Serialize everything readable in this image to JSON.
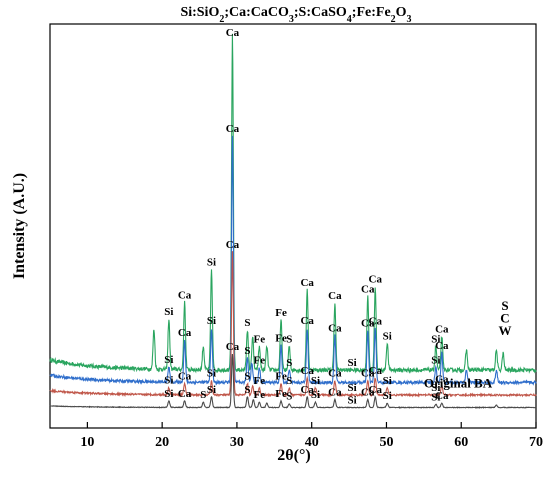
{
  "chart_data": {
    "type": "line",
    "title": "Si:SiO2;Ca:CaCO3;S:CaSO4;Fe:Fe2O3",
    "xlabel": "2θ(°)",
    "ylabel": "Intensity (A.U.)",
    "xlim": [
      5,
      70
    ],
    "xticks": [
      10,
      20,
      30,
      40,
      50,
      60,
      70
    ],
    "y_ticks_shown": false,
    "grid": false,
    "legend": "none",
    "series": [
      {
        "name": "S",
        "color": "#2aa55f",
        "baseline": 0.8,
        "amplitude": 6.1,
        "peaks": [
          [
            18.9,
            0.12
          ],
          [
            20.9,
            0.15
          ],
          [
            23.0,
            0.2
          ],
          [
            25.5,
            0.07
          ],
          [
            26.6,
            0.3
          ],
          [
            29.4,
            1.0
          ],
          [
            31.4,
            0.12
          ],
          [
            32.1,
            0.1
          ],
          [
            33.0,
            0.07
          ],
          [
            34.0,
            0.07
          ],
          [
            35.9,
            0.15
          ],
          [
            37.0,
            0.07
          ],
          [
            39.4,
            0.24
          ],
          [
            43.1,
            0.2
          ],
          [
            47.5,
            0.22
          ],
          [
            48.5,
            0.25
          ],
          [
            50.1,
            0.08
          ],
          [
            56.6,
            0.07
          ],
          [
            57.4,
            0.1
          ],
          [
            60.7,
            0.06
          ],
          [
            64.7,
            0.06
          ],
          [
            65.6,
            0.05
          ]
        ],
        "labels": [
          [
            "Si",
            20.9
          ],
          [
            "Ca",
            23.0
          ],
          [
            "Si",
            26.6
          ],
          [
            "Ca",
            29.4
          ],
          [
            "S",
            31.4
          ],
          [
            "Fe",
            33.0
          ],
          [
            "Fe",
            35.9
          ],
          [
            "S",
            37.0
          ],
          [
            "Ca",
            39.4
          ],
          [
            "Ca",
            43.1
          ],
          [
            "Si",
            45.4
          ],
          [
            "Ca",
            47.5
          ],
          [
            "Ca",
            48.5
          ],
          [
            "Si",
            50.1
          ],
          [
            "Si",
            56.6
          ],
          [
            "Ca",
            57.4
          ]
        ]
      },
      {
        "name": "C",
        "color": "#2f6ecb",
        "baseline": 0.55,
        "amplitude": 4.6,
        "peaks": [
          [
            20.9,
            0.06
          ],
          [
            23.0,
            0.17
          ],
          [
            26.6,
            0.22
          ],
          [
            29.4,
            1.0
          ],
          [
            31.4,
            0.1
          ],
          [
            32.0,
            0.08
          ],
          [
            33.0,
            0.06
          ],
          [
            35.9,
            0.15
          ],
          [
            37.0,
            0.05
          ],
          [
            39.4,
            0.22
          ],
          [
            43.1,
            0.19
          ],
          [
            47.5,
            0.21
          ],
          [
            48.5,
            0.22
          ],
          [
            56.6,
            0.06
          ],
          [
            57.4,
            0.12
          ],
          [
            60.7,
            0.05
          ],
          [
            64.7,
            0.05
          ]
        ],
        "labels": [
          [
            "Si",
            20.9
          ],
          [
            "Ca",
            23.0
          ],
          [
            "Si",
            26.6
          ],
          [
            "Ca",
            29.4
          ],
          [
            "S",
            31.4
          ],
          [
            "Fe",
            33.0
          ],
          [
            "Fe",
            35.9
          ],
          [
            "S",
            37.0
          ],
          [
            "Ca",
            39.4
          ],
          [
            "Ca",
            43.1
          ],
          [
            "Ca",
            47.5
          ],
          [
            "Ca",
            48.5
          ],
          [
            "Si",
            56.6
          ],
          [
            "Ca",
            57.4
          ]
        ]
      },
      {
        "name": "W",
        "color": "#c0574a",
        "baseline": 0.3,
        "amplitude": 4.6,
        "peaks": [
          [
            20.9,
            0.05
          ],
          [
            23.0,
            0.08
          ],
          [
            26.6,
            0.1
          ],
          [
            29.4,
            1.0
          ],
          [
            31.4,
            0.08
          ],
          [
            32.1,
            0.06
          ],
          [
            33.0,
            0.05
          ],
          [
            35.9,
            0.08
          ],
          [
            37.0,
            0.05
          ],
          [
            39.4,
            0.12
          ],
          [
            40.5,
            0.05
          ],
          [
            43.1,
            0.1
          ],
          [
            47.5,
            0.1
          ],
          [
            48.5,
            0.12
          ],
          [
            50.1,
            0.05
          ],
          [
            57.4,
            0.06
          ]
        ],
        "labels": [
          [
            "Si",
            20.9
          ],
          [
            "Ca",
            23.0
          ],
          [
            "Si",
            26.6
          ],
          [
            "Ca",
            29.4
          ],
          [
            "S",
            31.4
          ],
          [
            "Fe",
            33.0
          ],
          [
            "Fe",
            35.9
          ],
          [
            "S",
            37.0
          ],
          [
            "Ca",
            39.4
          ],
          [
            "Si",
            40.5
          ],
          [
            "Ca",
            43.1
          ],
          [
            "Si",
            45.4
          ],
          [
            "Ca",
            47.5
          ],
          [
            "Ca",
            48.5
          ],
          [
            "Si",
            50.1
          ],
          [
            "Si",
            56.6
          ],
          [
            "Ca",
            57.4
          ]
        ]
      },
      {
        "name": "Original BA",
        "color": "#4a4a4a",
        "baseline": 0.05,
        "amplitude": 3.4,
        "peaks": [
          [
            20.9,
            0.12
          ],
          [
            23.0,
            0.12
          ],
          [
            25.5,
            0.1
          ],
          [
            26.6,
            0.2
          ],
          [
            29.4,
            1.0
          ],
          [
            31.4,
            0.2
          ],
          [
            32.2,
            0.15
          ],
          [
            33.0,
            0.1
          ],
          [
            34.0,
            0.08
          ],
          [
            35.9,
            0.12
          ],
          [
            37.0,
            0.07
          ],
          [
            39.4,
            0.2
          ],
          [
            40.5,
            0.1
          ],
          [
            43.1,
            0.15
          ],
          [
            47.5,
            0.15
          ],
          [
            48.5,
            0.2
          ],
          [
            50.1,
            0.08
          ],
          [
            56.6,
            0.06
          ],
          [
            57.4,
            0.08
          ],
          [
            64.7,
            0.05
          ]
        ],
        "labels": [
          [
            "Si",
            20.9
          ],
          [
            "Ca",
            23.0
          ],
          [
            "S",
            25.5
          ],
          [
            "Si",
            26.6
          ],
          [
            "Ca",
            29.4
          ],
          [
            "S",
            31.4
          ],
          [
            "Fe",
            33.0
          ],
          [
            "Fe",
            35.9
          ],
          [
            "S",
            37.0
          ],
          [
            "Ca",
            39.4
          ],
          [
            "Si",
            40.5
          ],
          [
            "Ca",
            43.1
          ],
          [
            "Si",
            45.4
          ],
          [
            "Ca",
            47.5
          ],
          [
            "Ca",
            48.5
          ],
          [
            "Si",
            50.1
          ],
          [
            "Si",
            56.6
          ],
          [
            "Ca",
            57.4
          ]
        ]
      }
    ]
  }
}
